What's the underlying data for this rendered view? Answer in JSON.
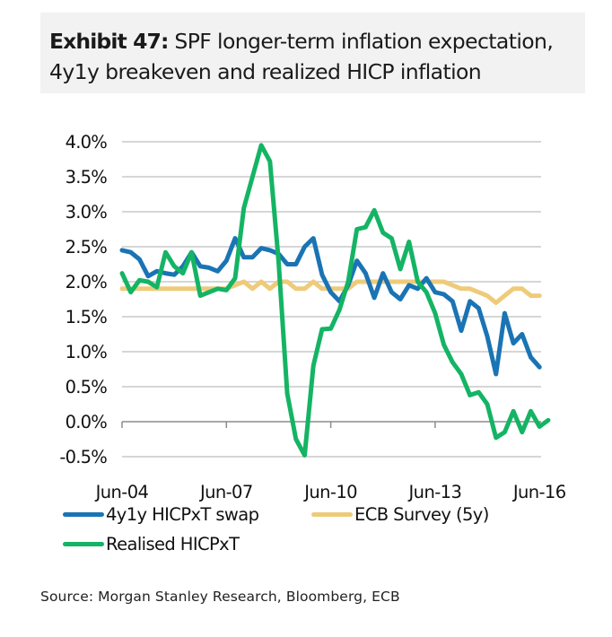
{
  "title": {
    "label": "Exhibit 47:",
    "line1": "SPF longer-term inflation expectation,",
    "line2": "4y1y breakeven and realized HICP inflation"
  },
  "source": "Source: Morgan Stanley Research, Bloomberg, ECB",
  "colors": {
    "swap": "#1a74b4",
    "survey": "#eecb7a",
    "realised": "#14b464",
    "grid": "#c8c8c8",
    "axis": "#8c8c8c"
  },
  "chart_data": {
    "type": "line",
    "title": "SPF longer-term inflation expectation, 4y1y breakeven and realized HICP inflation",
    "xlabel": "",
    "ylabel": "",
    "x_start": "Jun-04",
    "x_frequency": "quarterly",
    "x_ticks": [
      "Jun-04",
      "Jun-07",
      "Jun-10",
      "Jun-13",
      "Jun-16"
    ],
    "y_ticks": [
      "4.0%",
      "3.5%",
      "3.0%",
      "2.5%",
      "2.0%",
      "1.5%",
      "1.0%",
      "0.5%",
      "0.0%",
      "-0.5%"
    ],
    "ylim": [
      -0.5,
      4.0
    ],
    "grid": true,
    "legend_position": "bottom",
    "series": [
      {
        "name": "4y1y HICPxT swap",
        "color_key": "swap",
        "values": [
          2.45,
          2.42,
          2.32,
          2.08,
          2.15,
          2.12,
          2.1,
          2.22,
          2.42,
          2.22,
          2.2,
          2.15,
          2.3,
          2.62,
          2.35,
          2.35,
          2.48,
          2.45,
          2.4,
          2.25,
          2.25,
          2.5,
          2.62,
          2.1,
          1.85,
          1.72,
          1.95,
          2.3,
          2.12,
          1.77,
          2.12,
          1.85,
          1.75,
          1.95,
          1.9,
          2.05,
          1.85,
          1.82,
          1.72,
          1.3,
          1.72,
          1.62,
          1.22,
          0.68,
          1.55,
          1.12,
          1.25,
          0.92,
          0.78
        ]
      },
      {
        "name": "ECB Survey (5y)",
        "color_key": "survey",
        "values": [
          1.9,
          1.9,
          1.9,
          1.9,
          1.9,
          1.9,
          1.9,
          1.9,
          1.9,
          1.9,
          1.9,
          1.9,
          1.9,
          1.95,
          2.0,
          1.9,
          2.0,
          1.9,
          2.0,
          2.0,
          1.9,
          1.9,
          2.0,
          1.9,
          1.9,
          1.9,
          1.9,
          2.0,
          2.0,
          2.0,
          2.0,
          2.0,
          2.0,
          2.0,
          2.0,
          2.0,
          2.0,
          2.0,
          1.95,
          1.9,
          1.9,
          1.85,
          1.8,
          1.7,
          1.8,
          1.9,
          1.9,
          1.8,
          1.8
        ]
      },
      {
        "name": "Realised HICPxT",
        "color_key": "realised",
        "values": [
          2.12,
          1.85,
          2.02,
          2.0,
          1.92,
          2.42,
          2.22,
          2.12,
          2.42,
          1.8,
          1.85,
          1.9,
          1.88,
          2.05,
          3.05,
          3.5,
          3.95,
          3.72,
          2.3,
          0.4,
          -0.25,
          -0.48,
          0.8,
          1.32,
          1.33,
          1.6,
          2.0,
          2.75,
          2.78,
          3.02,
          2.7,
          2.62,
          2.18,
          2.57,
          2.0,
          1.85,
          1.55,
          1.1,
          0.85,
          0.68,
          0.38,
          0.42,
          0.25,
          -0.23,
          -0.15,
          0.15,
          -0.15,
          0.15,
          -0.07,
          0.02
        ]
      }
    ]
  }
}
